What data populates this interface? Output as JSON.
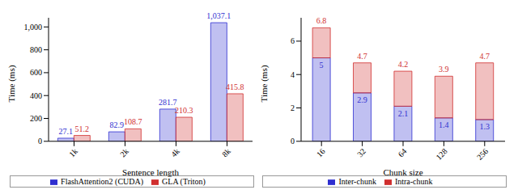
{
  "chart_data": [
    {
      "type": "bar",
      "categories": [
        "1k",
        "2k",
        "4k",
        "8k"
      ],
      "x_label": "Sentence length",
      "y_label": "Time (ms)",
      "series": [
        {
          "name": "FlashAttention2 (CUDA)",
          "color": "#2f2fd0",
          "values": [
            27.1,
            82.9,
            281.7,
            1037.1
          ],
          "value_labels": [
            "27.1",
            "82.9",
            "281.7",
            "1,037.1"
          ]
        },
        {
          "name": "GLA (Triton)",
          "color": "#d02f2f",
          "values": [
            51.2,
            108.7,
            210.3,
            415.8
          ]
        }
      ],
      "ylim": [
        0,
        1080
      ],
      "yticks": [
        0,
        200,
        400,
        600,
        800,
        {
          "value": 1000,
          "label": "1,000"
        }
      ],
      "data_labels": true,
      "legend": "bottom"
    },
    {
      "type": "bar",
      "stacked": true,
      "categories": [
        "16",
        "32",
        "64",
        "128",
        "256"
      ],
      "x_label": "Chunk size",
      "y_label": "Time (ms)",
      "series": [
        {
          "name": "Inter-chunk",
          "color": "#2f2fd0",
          "values": [
            5,
            2.9,
            2.1,
            1.4,
            1.3
          ]
        },
        {
          "name": "Intra-chunk",
          "color": "#d02f2f",
          "values": [
            1.8,
            1.8,
            2.1,
            2.5,
            3.4
          ]
        }
      ],
      "totals": [
        6.8,
        4.7,
        4.2,
        3.9,
        4.7
      ],
      "ylim": [
        0,
        7.4
      ],
      "yticks": [
        0,
        2,
        4,
        6
      ],
      "data_labels": true,
      "legend": "bottom"
    }
  ]
}
